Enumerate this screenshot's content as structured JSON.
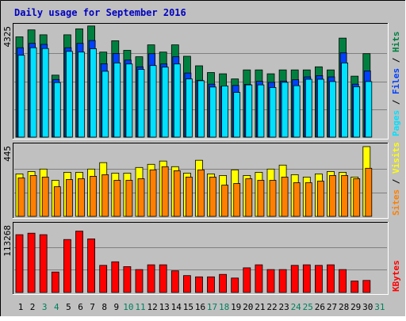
{
  "title": "Daily usage for September 2016",
  "colors": {
    "background": "#c0c0c0",
    "title": "#0000c0",
    "hits": "#008040",
    "files": "#0040ff",
    "pages": "#00e0ff",
    "visits": "#ffff00",
    "sites": "#ff8000",
    "kbytes": "#ff0000",
    "weekday_label": "#000000",
    "weekend_label": "#00805c"
  },
  "chart_data": [
    {
      "type": "bar",
      "panel": "hits-files-pages",
      "max_label": "4325",
      "ylim": [
        0,
        4325
      ],
      "legend": [
        "Pages",
        "Files",
        "Hits"
      ],
      "series": [
        {
          "name": "Hits",
          "values": [
            3880,
            4150,
            3960,
            2400,
            3960,
            4190,
            4300,
            3290,
            3730,
            3360,
            3110,
            3570,
            3290,
            3570,
            3130,
            2760,
            2500,
            2450,
            2250,
            2600,
            2600,
            2450,
            2600,
            2600,
            2600,
            2720,
            2600,
            3830,
            2360,
            3230
          ]
        },
        {
          "name": "Files",
          "values": [
            3460,
            3630,
            3590,
            2230,
            3460,
            3630,
            3740,
            2840,
            3240,
            2980,
            2720,
            3230,
            2830,
            3110,
            2480,
            2200,
            2050,
            1960,
            2000,
            2040,
            2160,
            2120,
            2170,
            2220,
            2330,
            2380,
            2330,
            3260,
            2050,
            2560
          ]
        },
        {
          "name": "Pages",
          "values": [
            3170,
            3460,
            3430,
            2110,
            3320,
            3290,
            3420,
            2550,
            2870,
            2830,
            2620,
            2770,
            2710,
            2830,
            2250,
            2180,
            1940,
            1980,
            1730,
            2020,
            2020,
            1920,
            2120,
            1990,
            2240,
            2240,
            2150,
            2870,
            1950,
            2150
          ]
        }
      ]
    },
    {
      "type": "bar",
      "panel": "visits-sites",
      "max_label": "445",
      "ylim": [
        0,
        445
      ],
      "legend": [
        "Sites",
        "Visits"
      ],
      "series": [
        {
          "name": "Visits",
          "values": [
            265,
            280,
            295,
            225,
            275,
            275,
            295,
            335,
            270,
            270,
            305,
            325,
            345,
            310,
            270,
            350,
            265,
            255,
            290,
            255,
            275,
            295,
            320,
            260,
            245,
            265,
            280,
            275,
            245,
            435
          ]
        },
        {
          "name": "Sites",
          "values": [
            240,
            255,
            245,
            185,
            230,
            235,
            250,
            260,
            225,
            225,
            235,
            290,
            310,
            285,
            245,
            290,
            245,
            195,
            205,
            235,
            225,
            225,
            245,
            210,
            210,
            220,
            255,
            255,
            235,
            300
          ]
        }
      ]
    },
    {
      "type": "bar",
      "panel": "kbytes",
      "max_label": "113268",
      "ylim": [
        0,
        113268
      ],
      "legend": [
        "KBytes"
      ],
      "series": [
        {
          "name": "KBytes",
          "values": [
            96000,
            98500,
            96000,
            34000,
            88000,
            102000,
            89000,
            45000,
            51000,
            43000,
            38000,
            46000,
            46000,
            36000,
            28000,
            26000,
            26000,
            30000,
            24000,
            41000,
            46000,
            38000,
            38000,
            45000,
            46000,
            45000,
            46000,
            38000,
            19000,
            20000
          ]
        }
      ]
    }
  ],
  "x_labels": {
    "days": [
      "1",
      "2",
      "3",
      "4",
      "5",
      "6",
      "7",
      "8",
      "9",
      "10",
      "11",
      "12",
      "13",
      "14",
      "15",
      "16",
      "17",
      "18",
      "19",
      "20",
      "21",
      "22",
      "23",
      "24",
      "25",
      "26",
      "27",
      "28",
      "29",
      "30",
      "31"
    ],
    "weekend_days": [
      "3",
      "4",
      "10",
      "11",
      "17",
      "18",
      "24",
      "25",
      "31"
    ]
  }
}
